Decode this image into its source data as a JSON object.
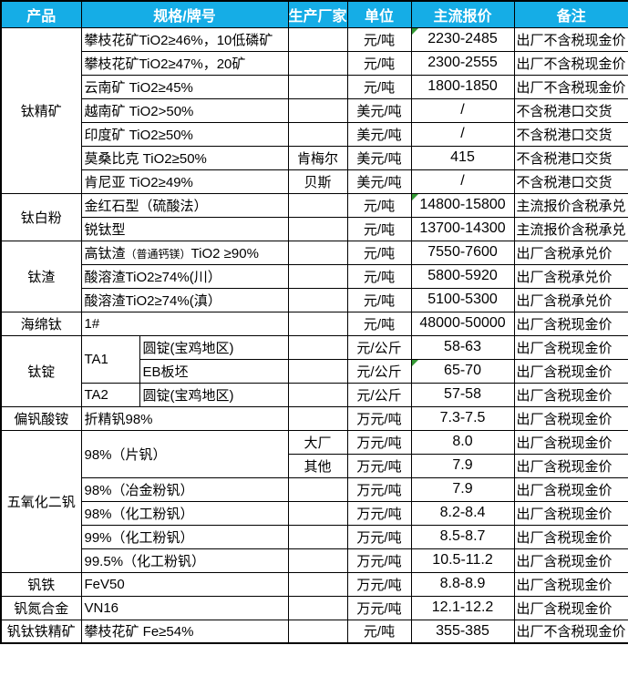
{
  "colors": {
    "header_bg": "#15ADE6",
    "header_text": "#FFFFFF",
    "border": "#000000",
    "cell_text": "#000000",
    "error_marker_green": "#339933"
  },
  "table": {
    "header": [
      "产品",
      "规格/牌号",
      "生产厂家",
      "单位",
      "主流报价",
      "备注"
    ],
    "rows": [
      [
        {
          "t": "钛精矿",
          "cls": "product",
          "rs": 7
        },
        {
          "t": "攀枝花矿TiO2≥46%，10低磷矿",
          "cls": "spec",
          "cs": 2
        },
        {
          "t": "",
          "cls": "producer"
        },
        {
          "t": "元/吨",
          "cls": "unit"
        },
        {
          "t": "2230-2485",
          "cls": "price",
          "mk": true
        },
        {
          "t": "出厂不含税现金价",
          "cls": "remark"
        }
      ],
      [
        {
          "t": "攀枝花矿TiO2≥47%，20矿",
          "cls": "spec",
          "cs": 2
        },
        {
          "t": "",
          "cls": "producer"
        },
        {
          "t": "元/吨",
          "cls": "unit"
        },
        {
          "t": "2300-2555",
          "cls": "price"
        },
        {
          "t": "出厂不含税现金价",
          "cls": "remark"
        }
      ],
      [
        {
          "t": "云南矿 TiO2≥45%",
          "cls": "spec",
          "cs": 2
        },
        {
          "t": "",
          "cls": "producer"
        },
        {
          "t": "元/吨",
          "cls": "unit"
        },
        {
          "t": "1800-1850",
          "cls": "price"
        },
        {
          "t": "出厂不含税现金价",
          "cls": "remark"
        }
      ],
      [
        {
          "t": "越南矿 TiO2>50%",
          "cls": "spec",
          "cs": 2
        },
        {
          "t": "",
          "cls": "producer"
        },
        {
          "t": "美元/吨",
          "cls": "unit"
        },
        {
          "t": "/",
          "cls": "price"
        },
        {
          "t": "不含税港口交货",
          "cls": "remark"
        }
      ],
      [
        {
          "t": "印度矿 TiO2≥50%",
          "cls": "spec",
          "cs": 2
        },
        {
          "t": "",
          "cls": "producer"
        },
        {
          "t": "美元/吨",
          "cls": "unit"
        },
        {
          "t": "/",
          "cls": "price"
        },
        {
          "t": "不含税港口交货",
          "cls": "remark"
        }
      ],
      [
        {
          "t": "莫桑比克 TiO2≥50%",
          "cls": "spec",
          "cs": 2
        },
        {
          "t": "肯梅尔",
          "cls": "producer"
        },
        {
          "t": "美元/吨",
          "cls": "unit"
        },
        {
          "t": "415",
          "cls": "price"
        },
        {
          "t": "不含税港口交货",
          "cls": "remark"
        }
      ],
      [
        {
          "t": "肯尼亚 TiO2≥49%",
          "cls": "spec",
          "cs": 2
        },
        {
          "t": "贝斯",
          "cls": "producer"
        },
        {
          "t": "美元/吨",
          "cls": "unit"
        },
        {
          "t": "/",
          "cls": "price"
        },
        {
          "t": "不含税港口交货",
          "cls": "remark"
        }
      ],
      [
        {
          "t": "钛白粉",
          "cls": "product",
          "rs": 2
        },
        {
          "t": "金红石型（硫酸法）",
          "cls": "spec",
          "cs": 2
        },
        {
          "t": "",
          "cls": "producer"
        },
        {
          "t": "元/吨",
          "cls": "unit"
        },
        {
          "t": "14800-15800",
          "cls": "price",
          "mk": true
        },
        {
          "t": "主流报价含税承兑",
          "cls": "remark"
        }
      ],
      [
        {
          "t": "锐钛型",
          "cls": "spec",
          "cs": 2
        },
        {
          "t": "",
          "cls": "producer"
        },
        {
          "t": "元/吨",
          "cls": "unit"
        },
        {
          "t": "13700-14300",
          "cls": "price"
        },
        {
          "t": "主流报价含税承兑",
          "cls": "remark"
        }
      ],
      [
        {
          "t": "钛渣",
          "cls": "product",
          "rs": 3
        },
        {
          "cls": "spec",
          "cs": 2,
          "parts": [
            {
              "t": "高钛渣",
              "sm": false
            },
            {
              "t": "（普通钙镁）",
              "sm": true
            },
            {
              "t": "TiO2 ≥90%",
              "sm": false
            }
          ]
        },
        {
          "t": "",
          "cls": "producer"
        },
        {
          "t": "元/吨",
          "cls": "unit"
        },
        {
          "t": "7550-7600",
          "cls": "price"
        },
        {
          "t": "出厂含税承兑价",
          "cls": "remark"
        }
      ],
      [
        {
          "t": "酸溶渣TiO2≥74%(川）",
          "cls": "spec",
          "cs": 2
        },
        {
          "t": "",
          "cls": "producer"
        },
        {
          "t": "元/吨",
          "cls": "unit"
        },
        {
          "t": "5800-5920",
          "cls": "price"
        },
        {
          "t": "出厂含税承兑价",
          "cls": "remark"
        }
      ],
      [
        {
          "t": "酸溶渣TiO2≥74%(滇）",
          "cls": "spec",
          "cs": 2
        },
        {
          "t": "",
          "cls": "producer"
        },
        {
          "t": "元/吨",
          "cls": "unit"
        },
        {
          "t": "5100-5300",
          "cls": "price"
        },
        {
          "t": "出厂含税承兑价",
          "cls": "remark"
        }
      ],
      [
        {
          "t": "海绵钛",
          "cls": "product"
        },
        {
          "t": "1#",
          "cls": "spec",
          "cs": 2
        },
        {
          "t": "",
          "cls": "producer"
        },
        {
          "t": "元/吨",
          "cls": "unit"
        },
        {
          "t": "48000-50000",
          "cls": "price"
        },
        {
          "t": "出厂含税现金价",
          "cls": "remark"
        }
      ],
      [
        {
          "t": "钛锭",
          "cls": "product",
          "rs": 3
        },
        {
          "t": "TA1",
          "cls": "specL",
          "rs": 2
        },
        {
          "t": "圆锭(宝鸡地区)",
          "cls": "specR"
        },
        {
          "t": "",
          "cls": "producer"
        },
        {
          "t": "元/公斤",
          "cls": "unit"
        },
        {
          "t": "58-63",
          "cls": "price"
        },
        {
          "t": "出厂含税现金价",
          "cls": "remark"
        }
      ],
      [
        {
          "t": "EB板坯",
          "cls": "specR"
        },
        {
          "t": "",
          "cls": "producer"
        },
        {
          "t": "元/公斤",
          "cls": "unit"
        },
        {
          "t": "65-70",
          "cls": "price",
          "mk": true
        },
        {
          "t": "出厂含税现金价",
          "cls": "remark"
        }
      ],
      [
        {
          "t": "TA2",
          "cls": "specL"
        },
        {
          "t": "圆锭(宝鸡地区)",
          "cls": "specR"
        },
        {
          "t": "",
          "cls": "producer"
        },
        {
          "t": "元/公斤",
          "cls": "unit"
        },
        {
          "t": "57-58",
          "cls": "price"
        },
        {
          "t": "出厂含税现金价",
          "cls": "remark"
        }
      ],
      [
        {
          "t": "偏钒酸铵",
          "cls": "product"
        },
        {
          "t": "折精钒98%",
          "cls": "spec",
          "cs": 2
        },
        {
          "t": "",
          "cls": "producer"
        },
        {
          "t": "万元/吨",
          "cls": "unit"
        },
        {
          "t": "7.3-7.5",
          "cls": "price"
        },
        {
          "t": "出厂含税现金价",
          "cls": "remark"
        }
      ],
      [
        {
          "t": "五氧化二钒",
          "cls": "product",
          "rs": 6
        },
        {
          "t": "98%（片钒）",
          "cls": "spec",
          "cs": 2,
          "rs": 2
        },
        {
          "t": "大厂",
          "cls": "producer"
        },
        {
          "t": "万元/吨",
          "cls": "unit"
        },
        {
          "t": "8.0",
          "cls": "price"
        },
        {
          "t": "出厂含税现金价",
          "cls": "remark"
        }
      ],
      [
        {
          "t": "其他",
          "cls": "producer"
        },
        {
          "t": "万元/吨",
          "cls": "unit"
        },
        {
          "t": "7.9",
          "cls": "price"
        },
        {
          "t": "出厂含税现金价",
          "cls": "remark"
        }
      ],
      [
        {
          "t": "98%（冶金粉钒）",
          "cls": "spec",
          "cs": 2
        },
        {
          "t": "",
          "cls": "producer"
        },
        {
          "t": "万元/吨",
          "cls": "unit"
        },
        {
          "t": "7.9",
          "cls": "price"
        },
        {
          "t": "出厂含税现金价",
          "cls": "remark"
        }
      ],
      [
        {
          "t": "98%（化工粉钒）",
          "cls": "spec",
          "cs": 2
        },
        {
          "t": "",
          "cls": "producer"
        },
        {
          "t": "万元/吨",
          "cls": "unit"
        },
        {
          "t": "8.2-8.4",
          "cls": "price"
        },
        {
          "t": "出厂含税现金价",
          "cls": "remark"
        }
      ],
      [
        {
          "t": "99%（化工粉钒）",
          "cls": "spec",
          "cs": 2
        },
        {
          "t": "",
          "cls": "producer"
        },
        {
          "t": "万元/吨",
          "cls": "unit"
        },
        {
          "t": "8.5-8.7",
          "cls": "price"
        },
        {
          "t": "出厂含税现金价",
          "cls": "remark"
        }
      ],
      [
        {
          "t": "99.5%（化工粉钒）",
          "cls": "spec",
          "cs": 2
        },
        {
          "t": "",
          "cls": "producer"
        },
        {
          "t": "万元/吨",
          "cls": "unit"
        },
        {
          "t": "10.5-11.2",
          "cls": "price"
        },
        {
          "t": "出厂含税现金价",
          "cls": "remark"
        }
      ],
      [
        {
          "t": "钒铁",
          "cls": "product"
        },
        {
          "t": "FeV50",
          "cls": "spec",
          "cs": 2
        },
        {
          "t": "",
          "cls": "producer"
        },
        {
          "t": "万元/吨",
          "cls": "unit"
        },
        {
          "t": "8.8-8.9",
          "cls": "price"
        },
        {
          "t": "出厂含税现金价",
          "cls": "remark"
        }
      ],
      [
        {
          "t": "钒氮合金",
          "cls": "product"
        },
        {
          "t": "VN16",
          "cls": "spec",
          "cs": 2
        },
        {
          "t": "",
          "cls": "producer"
        },
        {
          "t": "万元/吨",
          "cls": "unit"
        },
        {
          "t": "12.1-12.2",
          "cls": "price"
        },
        {
          "t": "出厂含税现金价",
          "cls": "remark"
        }
      ],
      [
        {
          "t": "钒钛铁精矿",
          "cls": "product"
        },
        {
          "t": "攀枝花矿 Fe≥54%",
          "cls": "spec",
          "cs": 2
        },
        {
          "t": "",
          "cls": "producer"
        },
        {
          "t": "元/吨",
          "cls": "unit"
        },
        {
          "t": "355-385",
          "cls": "price"
        },
        {
          "t": "出厂不含税现金价",
          "cls": "remark"
        }
      ]
    ]
  },
  "chart_data": {
    "type": "table",
    "title": "",
    "columns": [
      "产品",
      "规格/牌号",
      "生产厂家",
      "单位",
      "主流报价",
      "备注"
    ],
    "rows": [
      [
        "钛精矿",
        "攀枝花矿TiO2≥46%，10低磷矿",
        "",
        "元/吨",
        "2230-2485",
        "出厂不含税现金价"
      ],
      [
        "钛精矿",
        "攀枝花矿TiO2≥47%，20矿",
        "",
        "元/吨",
        "2300-2555",
        "出厂不含税现金价"
      ],
      [
        "钛精矿",
        "云南矿 TiO2≥45%",
        "",
        "元/吨",
        "1800-1850",
        "出厂不含税现金价"
      ],
      [
        "钛精矿",
        "越南矿 TiO2>50%",
        "",
        "美元/吨",
        "/",
        "不含税港口交货"
      ],
      [
        "钛精矿",
        "印度矿 TiO2≥50%",
        "",
        "美元/吨",
        "/",
        "不含税港口交货"
      ],
      [
        "钛精矿",
        "莫桑比克 TiO2≥50%",
        "肯梅尔",
        "美元/吨",
        "415",
        "不含税港口交货"
      ],
      [
        "钛精矿",
        "肯尼亚 TiO2≥49%",
        "贝斯",
        "美元/吨",
        "/",
        "不含税港口交货"
      ],
      [
        "钛白粉",
        "金红石型（硫酸法）",
        "",
        "元/吨",
        "14800-15800",
        "主流报价含税承兑"
      ],
      [
        "钛白粉",
        "锐钛型",
        "",
        "元/吨",
        "13700-14300",
        "主流报价含税承兑"
      ],
      [
        "钛渣",
        "高钛渣（普通钙镁）TiO2 ≥90%",
        "",
        "元/吨",
        "7550-7600",
        "出厂含税承兑价"
      ],
      [
        "钛渣",
        "酸溶渣TiO2≥74%(川）",
        "",
        "元/吨",
        "5800-5920",
        "出厂含税承兑价"
      ],
      [
        "钛渣",
        "酸溶渣TiO2≥74%(滇）",
        "",
        "元/吨",
        "5100-5300",
        "出厂含税承兑价"
      ],
      [
        "海绵钛",
        "1#",
        "",
        "元/吨",
        "48000-50000",
        "出厂含税现金价"
      ],
      [
        "钛锭",
        "TA1 圆锭(宝鸡地区)",
        "",
        "元/公斤",
        "58-63",
        "出厂含税现金价"
      ],
      [
        "钛锭",
        "TA1 EB板坯",
        "",
        "元/公斤",
        "65-70",
        "出厂含税现金价"
      ],
      [
        "钛锭",
        "TA2 圆锭(宝鸡地区)",
        "",
        "元/公斤",
        "57-58",
        "出厂含税现金价"
      ],
      [
        "偏钒酸铵",
        "折精钒98%",
        "",
        "万元/吨",
        "7.3-7.5",
        "出厂含税现金价"
      ],
      [
        "五氧化二钒",
        "98%（片钒）",
        "大厂",
        "万元/吨",
        "8.0",
        "出厂含税现金价"
      ],
      [
        "五氧化二钒",
        "98%（片钒）",
        "其他",
        "万元/吨",
        "7.9",
        "出厂含税现金价"
      ],
      [
        "五氧化二钒",
        "98%（冶金粉钒）",
        "",
        "万元/吨",
        "7.9",
        "出厂含税现金价"
      ],
      [
        "五氧化二钒",
        "98%（化工粉钒）",
        "",
        "万元/吨",
        "8.2-8.4",
        "出厂含税现金价"
      ],
      [
        "五氧化二钒",
        "99%（化工粉钒）",
        "",
        "万元/吨",
        "8.5-8.7",
        "出厂含税现金价"
      ],
      [
        "五氧化二钒",
        "99.5%（化工粉钒）",
        "",
        "万元/吨",
        "10.5-11.2",
        "出厂含税现金价"
      ],
      [
        "钒铁",
        "FeV50",
        "",
        "万元/吨",
        "8.8-8.9",
        "出厂含税现金价"
      ],
      [
        "钒氮合金",
        "VN16",
        "",
        "万元/吨",
        "12.1-12.2",
        "出厂含税现金价"
      ],
      [
        "钒钛铁精矿",
        "攀枝花矿 Fe≥54%",
        "",
        "元/吨",
        "355-385",
        "出厂不含税现金价"
      ]
    ]
  }
}
